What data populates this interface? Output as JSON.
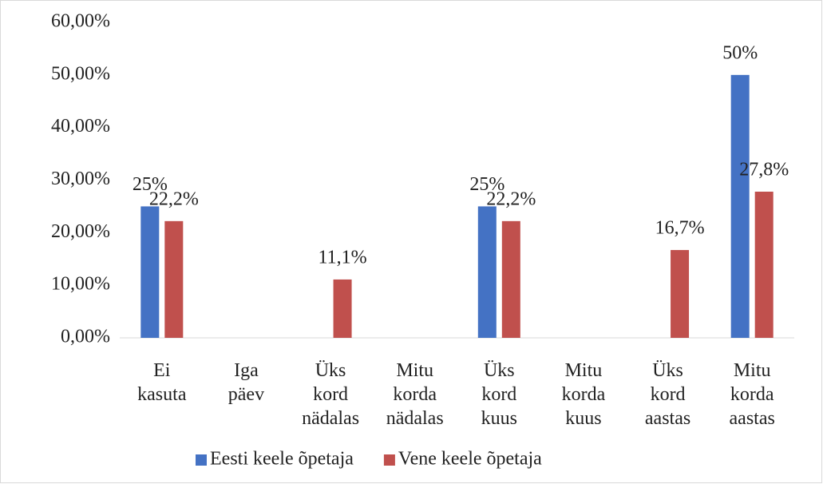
{
  "chart_data": {
    "type": "bar",
    "categories": [
      "Ei kasuta",
      "Iga päev",
      "Üks kord nädalas",
      "Mitu korda nädalas",
      "Üks kord kuus",
      "Mitu korda kuus",
      "Üks kord aastas",
      "Mitu korda aastas"
    ],
    "series": [
      {
        "name": "Eesti keele õpetaja",
        "color": "#4472c4",
        "values": [
          25,
          0,
          0,
          0,
          25,
          0,
          0,
          50
        ],
        "value_labels": [
          "25%",
          null,
          null,
          null,
          "25%",
          null,
          null,
          "50%"
        ]
      },
      {
        "name": "Vene keele õpetaja",
        "color": "#c0504d",
        "values": [
          22.2,
          0,
          11.1,
          0,
          22.2,
          0,
          16.7,
          27.8
        ],
        "value_labels": [
          "22,2%",
          null,
          "11,1%",
          null,
          "22,2%",
          null,
          "16,7%",
          "27,8%"
        ]
      }
    ],
    "ylim": [
      0,
      60
    ],
    "yticks": [
      {
        "value": 0,
        "label": "0,00%"
      },
      {
        "value": 10,
        "label": "10,00%"
      },
      {
        "value": 20,
        "label": "20,00%"
      },
      {
        "value": 30,
        "label": "30,00%"
      },
      {
        "value": 40,
        "label": "40,00%"
      },
      {
        "value": 50,
        "label": "50,00%"
      },
      {
        "value": 60,
        "label": "60,00%"
      }
    ],
    "grid": false,
    "legend": "bottom"
  }
}
